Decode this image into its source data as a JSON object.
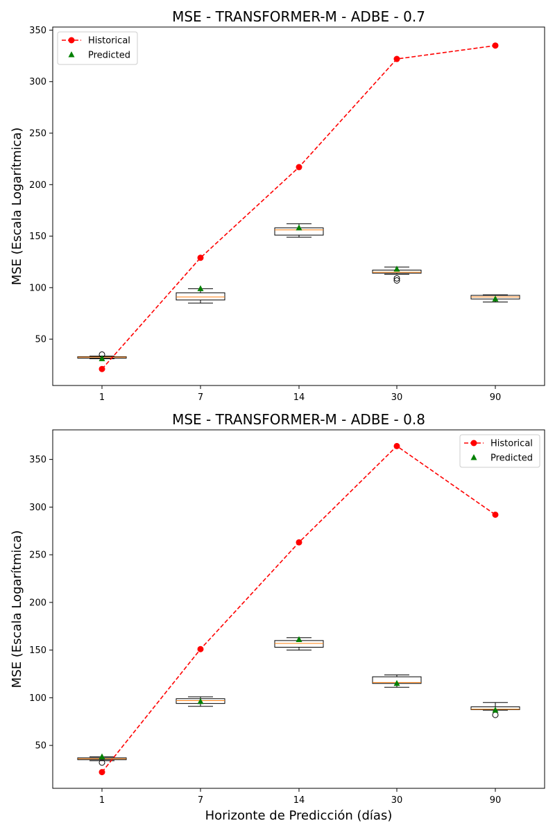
{
  "chart_data": [
    {
      "type": "box",
      "title": "MSE - TRANSFORMER-M - ADBE - 0.7",
      "xlabel": "",
      "ylabel": "MSE (Escala Logarítmica)",
      "categories": [
        "1",
        "7",
        "14",
        "30",
        "90"
      ],
      "ylim": [
        5,
        353
      ],
      "yticks": [
        50,
        100,
        150,
        200,
        250,
        300,
        350
      ],
      "legend_position": "top-left",
      "legend": [
        "Historical",
        "Predicted"
      ],
      "historical": [
        21,
        129,
        217,
        322,
        335
      ],
      "predicted": [
        31,
        99,
        158,
        118,
        89
      ],
      "boxes": [
        {
          "whisker_low": 31,
          "q1": 31.5,
          "median": 32.5,
          "q3": 33,
          "whisker_high": 33.5,
          "outliers": [
            35
          ]
        },
        {
          "whisker_low": 85,
          "q1": 88,
          "median": 91,
          "q3": 95,
          "whisker_high": 99,
          "outliers": []
        },
        {
          "whisker_low": 149,
          "q1": 151,
          "median": 156,
          "q3": 158,
          "whisker_high": 162,
          "outliers": []
        },
        {
          "whisker_low": 113,
          "q1": 114,
          "median": 115,
          "q3": 117,
          "whisker_high": 120,
          "outliers": [
            107,
            109
          ]
        },
        {
          "whisker_low": 86,
          "q1": 89,
          "median": 91,
          "q3": 92.5,
          "whisker_high": 93,
          "outliers": []
        }
      ]
    },
    {
      "type": "box",
      "title": "MSE - TRANSFORMER-M - ADBE - 0.8",
      "xlabel": "Horizonte de Predicción (días)",
      "ylabel": "MSE (Escala Logarítmica)",
      "categories": [
        "1",
        "7",
        "14",
        "30",
        "90"
      ],
      "ylim": [
        5,
        381
      ],
      "yticks": [
        50,
        100,
        150,
        200,
        250,
        300,
        350
      ],
      "legend_position": "top-right",
      "legend": [
        "Historical",
        "Predicted"
      ],
      "historical": [
        22,
        151,
        263,
        364,
        292
      ],
      "predicted": [
        38,
        96,
        161,
        115,
        87
      ],
      "boxes": [
        {
          "whisker_low": 34,
          "q1": 35,
          "median": 36,
          "q3": 37,
          "whisker_high": 38,
          "outliers": [
            32
          ]
        },
        {
          "whisker_low": 91,
          "q1": 94,
          "median": 97,
          "q3": 99,
          "whisker_high": 101,
          "outliers": []
        },
        {
          "whisker_low": 150,
          "q1": 153,
          "median": 157,
          "q3": 160,
          "whisker_high": 163,
          "outliers": []
        },
        {
          "whisker_low": 111,
          "q1": 115,
          "median": 116,
          "q3": 122,
          "whisker_high": 124,
          "outliers": []
        },
        {
          "whisker_low": 87,
          "q1": 87.5,
          "median": 88,
          "q3": 90.5,
          "whisker_high": 95,
          "outliers": [
            82
          ]
        }
      ]
    }
  ],
  "colors": {
    "historical": "#ff0000",
    "predicted": "#008000",
    "median": "#ff7f0e",
    "box": "#000000"
  }
}
